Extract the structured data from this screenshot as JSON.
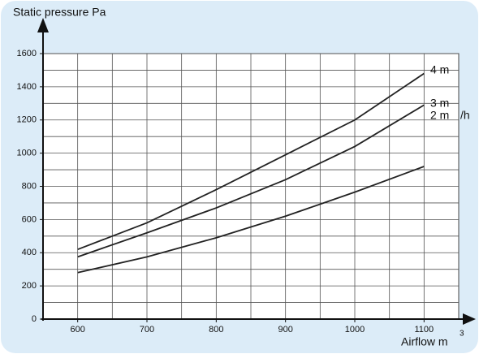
{
  "chart_data": {
    "type": "line",
    "title": "Static pressure Pa",
    "x_label": "Airflow m",
    "x_label_sup": "3",
    "annotation": "/h",
    "x": [
      600,
      700,
      800,
      900,
      1000,
      1100
    ],
    "series": [
      {
        "name": "4 m",
        "color": "#222222",
        "values": [
          420,
          580,
          780,
          990,
          1200,
          1480
        ]
      },
      {
        "name": "3 m",
        "color": "#222222",
        "values": [
          375,
          520,
          670,
          840,
          1040,
          1290
        ]
      },
      {
        "name": "2 m",
        "color": "#222222",
        "values": [
          280,
          375,
          490,
          620,
          765,
          920
        ]
      }
    ],
    "xlim": [
      550,
      1150
    ],
    "xticks": [
      600,
      700,
      800,
      900,
      1000,
      1100
    ],
    "ylim": [
      0,
      1600
    ],
    "yticks": [
      0,
      200,
      400,
      600,
      800,
      1000,
      1200,
      1400,
      1600
    ],
    "grid": true
  }
}
